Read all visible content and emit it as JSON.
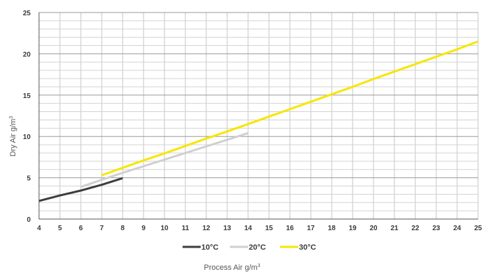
{
  "chart_data": {
    "type": "line",
    "title": "",
    "xlabel": "Process Air g/m",
    "xlabel_superscript": "3",
    "ylabel": "Dry Air g/m",
    "ylabel_superscript": "3",
    "xlim": [
      4,
      25
    ],
    "ylim": [
      0,
      25
    ],
    "x_ticks": [
      4,
      5,
      6,
      7,
      8,
      9,
      10,
      11,
      12,
      13,
      14,
      15,
      16,
      17,
      18,
      19,
      20,
      21,
      22,
      23,
      24,
      25
    ],
    "y_ticks": [
      0,
      5,
      10,
      15,
      20,
      25
    ],
    "x_minor_step": 1,
    "y_minor_step": 1,
    "grid": true,
    "legend_position": "bottom",
    "series": [
      {
        "name": "10°C",
        "color": "#3d3d40",
        "x": [
          4,
          5,
          6,
          7,
          8
        ],
        "y": [
          2.2,
          2.85,
          3.45,
          4.15,
          4.95
        ]
      },
      {
        "name": "20°C",
        "color": "#cfcfcf",
        "x": [
          6,
          7,
          8,
          9,
          10,
          11,
          12,
          13,
          14
        ],
        "y": [
          3.9,
          4.75,
          5.6,
          6.4,
          7.2,
          8.0,
          8.8,
          9.6,
          10.4
        ]
      },
      {
        "name": "30°C",
        "color": "#f7e600",
        "x": [
          7,
          8,
          9,
          10,
          11,
          12,
          13,
          14,
          15,
          16,
          17,
          18,
          19,
          20,
          21,
          22,
          23,
          24,
          25
        ],
        "y": [
          5.3,
          6.2,
          7.1,
          7.95,
          8.85,
          9.75,
          10.6,
          11.5,
          12.4,
          13.3,
          14.2,
          15.1,
          16.0,
          16.95,
          17.85,
          18.75,
          19.65,
          20.55,
          21.5
        ]
      }
    ]
  }
}
